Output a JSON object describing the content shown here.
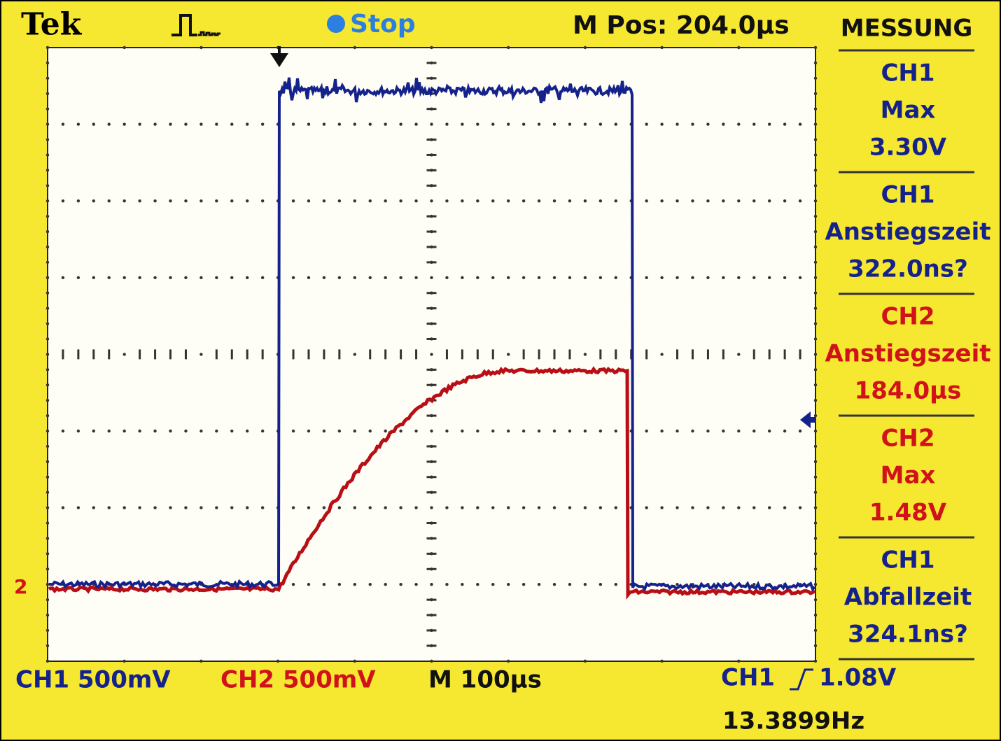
{
  "header": {
    "brand": "Tek",
    "status": "Stop",
    "position": "M Pos: 204.0µs"
  },
  "menu": {
    "title": "MESSUNG",
    "measurements": [
      {
        "channel": "CH1",
        "name": "Max",
        "value": "3.30V"
      },
      {
        "channel": "CH1",
        "name": "Anstiegszeit",
        "value": "322.0ns?"
      },
      {
        "channel": "CH2",
        "name": "Anstiegszeit",
        "value": "184.0µs"
      },
      {
        "channel": "CH2",
        "name": "Max",
        "value": "1.48V"
      },
      {
        "channel": "CH1",
        "name": "Abfallzeit",
        "value": "324.1ns?"
      }
    ]
  },
  "footer": {
    "ch1_scale": "CH1 500mV",
    "ch2_scale": "CH2 500mV",
    "timebase": "M 100µs",
    "trigger_source": "CH1",
    "trigger_level": "1.08V",
    "frequency": "13.3899Hz"
  },
  "ground_marker": "2"
}
